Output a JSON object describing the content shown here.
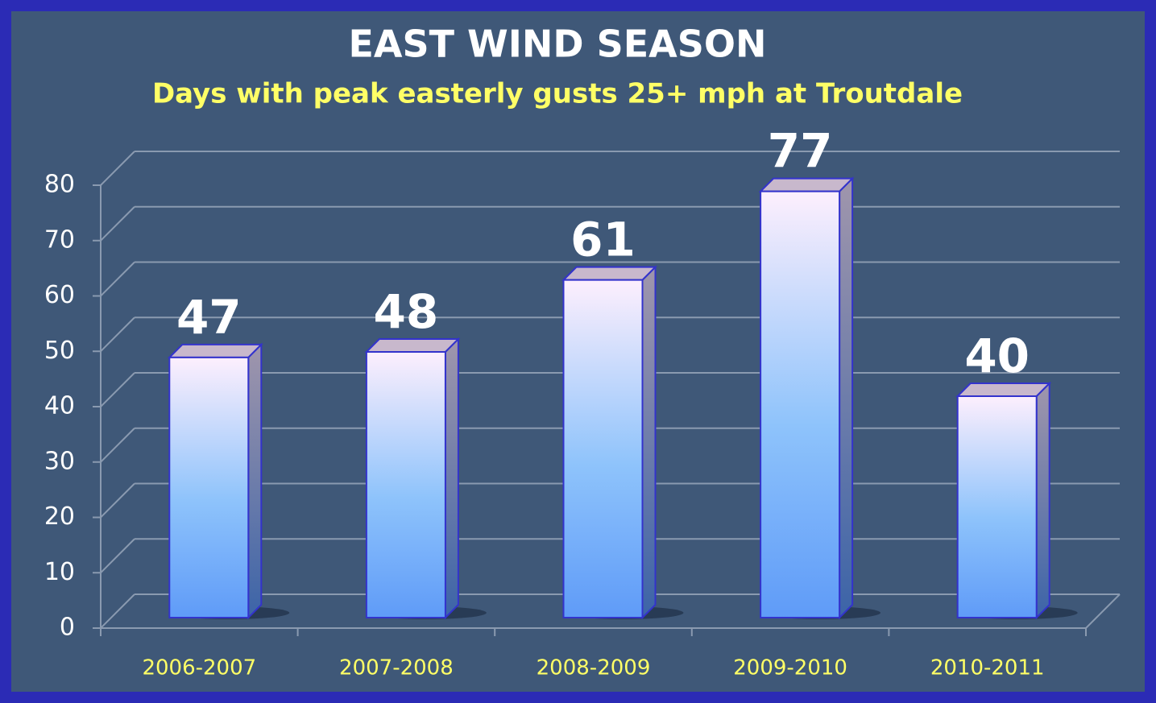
{
  "chart_data": {
    "type": "bar",
    "title": "EAST WIND SEASON",
    "subtitle": "Days with peak easterly gusts 25+ mph at Troutdale",
    "categories": [
      "2006-2007",
      "2007-2008",
      "2008-2009",
      "2009-2010",
      "2010-2011"
    ],
    "values": [
      47,
      48,
      61,
      77,
      40
    ],
    "color": "#5f9bf8",
    "ylim": [
      0,
      80
    ],
    "yticks": [
      0,
      10,
      20,
      30,
      40,
      50,
      60,
      70,
      80
    ],
    "grid": true
  }
}
